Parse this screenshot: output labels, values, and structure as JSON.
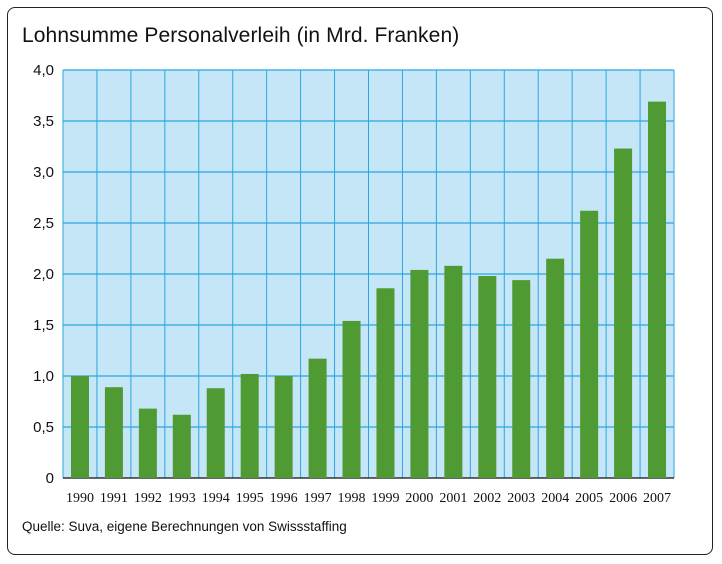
{
  "chart_data": {
    "type": "bar",
    "title": "Lohnsumme Personalverleih (in Mrd. Franken)",
    "source": "Quelle: Suva, eigene Berechnungen von Swissstaffing",
    "categories": [
      "1990",
      "1991",
      "1992",
      "1993",
      "1994",
      "1995",
      "1996",
      "1997",
      "1998",
      "1999",
      "2000",
      "2001",
      "2002",
      "2003",
      "2004",
      "2005",
      "2006",
      "2007"
    ],
    "values": [
      1.0,
      0.89,
      0.68,
      0.62,
      0.88,
      1.02,
      1.0,
      1.17,
      1.54,
      1.86,
      2.04,
      2.08,
      1.98,
      1.94,
      2.15,
      2.62,
      3.23,
      3.69
    ],
    "yticks": [
      "0",
      "0,5",
      "1,0",
      "1,5",
      "2,0",
      "2,5",
      "3,0",
      "3,5",
      "4,0"
    ],
    "ylim": [
      0,
      4
    ],
    "grid": true,
    "colors": {
      "bar": "#4f9a32",
      "plot_bg": "#c5e6f6",
      "grid": "#2aa7e0"
    }
  }
}
